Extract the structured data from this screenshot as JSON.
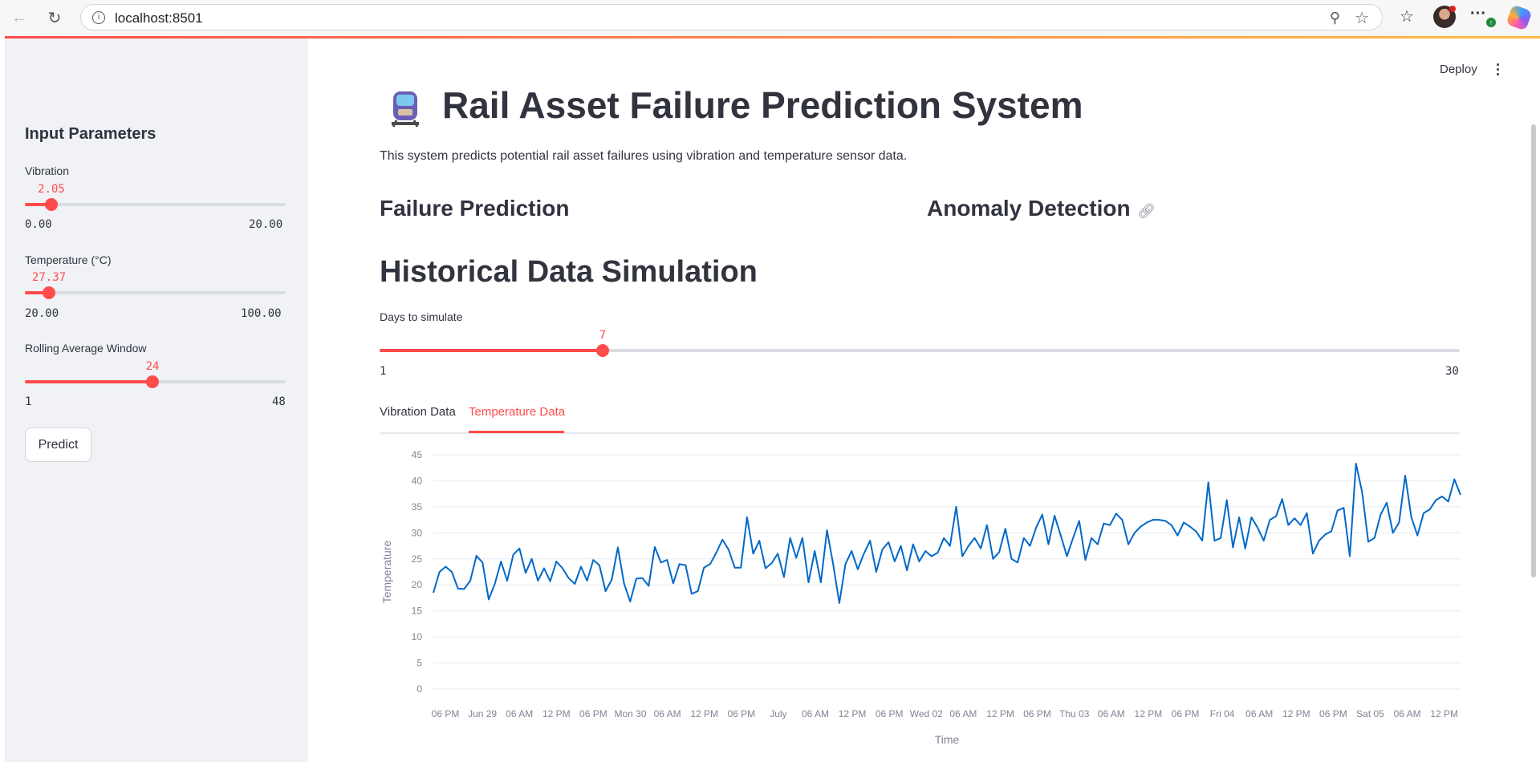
{
  "browser": {
    "url": "localhost:8501"
  },
  "header": {
    "deploy_label": "Deploy"
  },
  "sidebar": {
    "title": "Input Parameters",
    "sliders": [
      {
        "label": "Vibration",
        "value": "2.05",
        "min": "0.00",
        "max": "20.00",
        "fraction": 0.1025
      },
      {
        "label": "Temperature (°C)",
        "value": "27.37",
        "min": "20.00",
        "max": "100.00",
        "fraction": 0.092
      },
      {
        "label": "Rolling Average Window",
        "value": "24",
        "min": "1",
        "max": "48",
        "fraction": 0.489
      }
    ],
    "predict_label": "Predict"
  },
  "main": {
    "title": "Rail Asset Failure Prediction System",
    "description": "This system predicts potential rail asset failures using vibration and temperature sensor data.",
    "section_failure": "Failure Prediction",
    "section_anomaly": "Anomaly Detection",
    "section_history": "Historical Data Simulation",
    "days_slider": {
      "label": "Days to simulate",
      "value": "7",
      "min": "1",
      "max": "30",
      "fraction": 0.2069
    },
    "tabs": [
      {
        "label": "Vibration Data",
        "active": false
      },
      {
        "label": "Temperature Data",
        "active": true
      }
    ]
  },
  "colors": {
    "accent": "#ff4b4b",
    "line": "#0068c9",
    "sidebar_bg": "#f0f2f6"
  },
  "chart_data": {
    "type": "line",
    "xlabel": "Time",
    "ylabel": "Temperature",
    "ylim": [
      0,
      45
    ],
    "yticks": [
      0,
      5,
      10,
      15,
      20,
      25,
      30,
      35,
      40,
      45
    ],
    "xticks": [
      "06 PM",
      "Jun 29",
      "06 AM",
      "12 PM",
      "06 PM",
      "Mon 30",
      "06 AM",
      "12 PM",
      "06 PM",
      "July",
      "06 AM",
      "12 PM",
      "06 PM",
      "Wed 02",
      "06 AM",
      "12 PM",
      "06 PM",
      "Thu 03",
      "06 AM",
      "12 PM",
      "06 PM",
      "Fri 04",
      "06 AM",
      "12 PM",
      "06 PM",
      "Sat 05",
      "06 AM",
      "12 PM"
    ],
    "grid": true,
    "series": [
      {
        "values": [
          18.5,
          22.5,
          23.5,
          22.5,
          19.3,
          19.2,
          20.8,
          25.6,
          24.3,
          17.2,
          20.2,
          24.5,
          20.8,
          25.8,
          27.0,
          22.3,
          25.0,
          20.8,
          23.2,
          20.7,
          24.5,
          23.2,
          21.3,
          20.2,
          23.5,
          20.8,
          24.8,
          23.8,
          18.8,
          21.0,
          27.2,
          20.3,
          16.8,
          21.2,
          21.3,
          19.8,
          27.3,
          24.3,
          24.8,
          20.3,
          24.0,
          23.8,
          18.3,
          18.8,
          23.3,
          24.0,
          26.2,
          28.7,
          26.8,
          23.3,
          23.3,
          33.0,
          26.0,
          28.5,
          23.2,
          24.2,
          26.0,
          21.5,
          29.0,
          25.2,
          29.0,
          20.5,
          26.5,
          20.5,
          30.5,
          24.0,
          16.5,
          24.0,
          26.5,
          23.0,
          26.0,
          28.5,
          22.5,
          26.8,
          28.2,
          24.5,
          27.5,
          22.8,
          27.8,
          24.5,
          26.5,
          25.5,
          26.2,
          29.0,
          27.5,
          35.0,
          25.5,
          27.5,
          29.0,
          27.0,
          31.5,
          25.0,
          26.3,
          30.8,
          25.0,
          24.3,
          29.0,
          27.5,
          31.0,
          33.5,
          27.8,
          33.3,
          29.5,
          25.5,
          29.0,
          32.3,
          24.8,
          29.0,
          27.8,
          31.8,
          31.5,
          33.7,
          32.5,
          27.8,
          30.0,
          31.2,
          32.0,
          32.5,
          32.5,
          32.3,
          31.5,
          29.5,
          32.0,
          31.2,
          30.3,
          28.5,
          39.7,
          28.5,
          29.0,
          36.3,
          27.2,
          33.0,
          27.0,
          33.0,
          31.0,
          28.5,
          32.5,
          33.2,
          36.5,
          31.5,
          32.8,
          31.5,
          33.8,
          26.0,
          28.5,
          29.7,
          30.3,
          34.3,
          34.8,
          25.5,
          43.3,
          37.8,
          28.3,
          29.0,
          33.5,
          35.8,
          30.0,
          32.0,
          41.0,
          33.0,
          29.5,
          33.8,
          34.5,
          36.3,
          37.0,
          36.0,
          40.3,
          37.3
        ]
      }
    ]
  }
}
